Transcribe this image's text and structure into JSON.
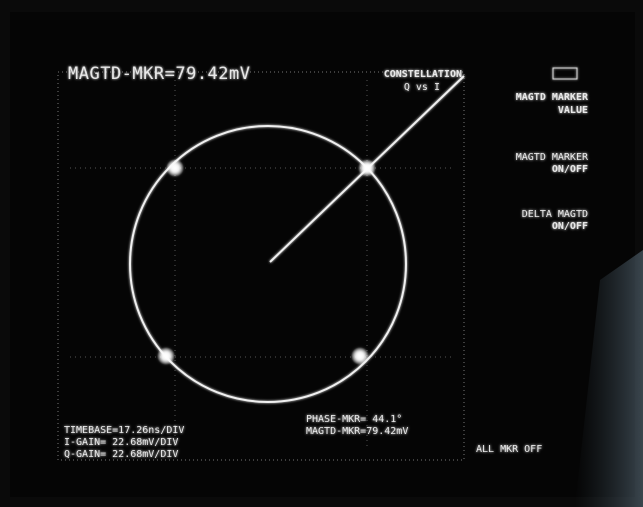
{
  "header": {
    "marker_readout": "MAGTD-MKR=79.42mV",
    "display_mode": "CONSTELLATION",
    "display_sub": "Q vs I"
  },
  "softkeys": [
    {
      "line1": "MAGTD MARKER",
      "line2": "VALUE"
    },
    {
      "line1": "MAGTD MARKER",
      "line2": "ON/OFF"
    },
    {
      "line1": "DELTA MAGTD",
      "line2": "ON/OFF"
    },
    {
      "line1": "ALL MKR  OFF"
    }
  ],
  "readouts": {
    "timebase": "TIMEBASE=17.26ns/DIV",
    "i_gain": "I-GAIN= 22.68mV/DIV",
    "q_gain": "Q-GAIN= 22.68mV/DIV",
    "phase_marker": "PHASE-MKR=  44.1°",
    "magnitude_marker": "MAGTD-MKR=79.42mV"
  }
}
